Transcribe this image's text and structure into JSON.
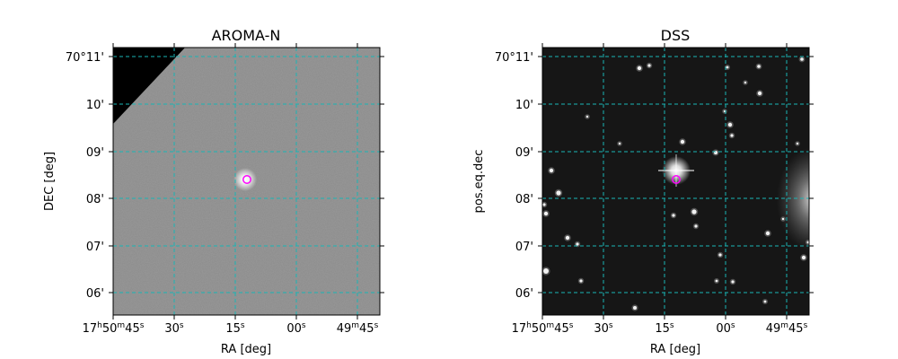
{
  "panels": [
    {
      "title": "AROMA-N",
      "xlabel": "RA [deg]",
      "ylabel": "DEC [deg]",
      "image_style": "gray-survey-with-masked-corner",
      "x_tick_labels": [
        {
          "hms": "17",
          "m": "50",
          "s": "45"
        },
        {
          "s": "30"
        },
        {
          "s": "15"
        },
        {
          "s": "00"
        },
        {
          "hms": "49",
          "m": "45",
          "mOnly": true
        }
      ],
      "y_tick_labels": [
        "70°11'",
        "10'",
        "09'",
        "08'",
        "07'",
        "06'"
      ]
    },
    {
      "title": "DSS",
      "xlabel": "RA [deg]",
      "ylabel": "pos.eq.dec",
      "image_style": "dark-starfield",
      "x_tick_labels": [
        {
          "hms": "17",
          "m": "50",
          "s": "45"
        },
        {
          "s": "30"
        },
        {
          "s": "15"
        },
        {
          "s": "00"
        },
        {
          "hms": "49",
          "m": "45",
          "mOnly": true
        }
      ],
      "y_tick_labels": [
        "70°11'",
        "10'",
        "09'",
        "08'",
        "07'",
        "06'"
      ]
    }
  ],
  "colors": {
    "grid": "#19b5b5",
    "marker": "#ff00ff",
    "aroma_bg": "#8c8c8c",
    "dss_bg": "#161616"
  }
}
